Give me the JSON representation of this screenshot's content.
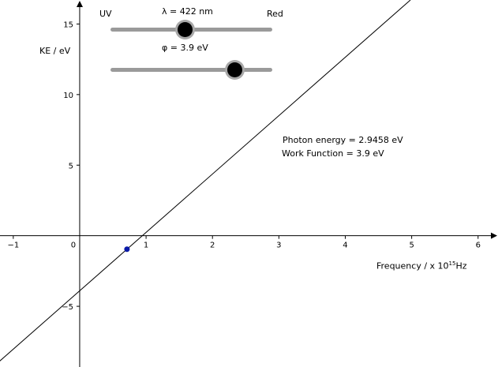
{
  "axes": {
    "ylabel": "KE / eV",
    "xlabel_prefix": "Frequency / x 10",
    "xlabel_exp": "15",
    "xlabel_unit": "Hz",
    "x_ticks": [
      "−1",
      "0",
      "1",
      "2",
      "3",
      "4",
      "5",
      "6"
    ],
    "y_ticks": [
      "15",
      "10",
      "5",
      "−5"
    ],
    "xlim": [
      -1.2,
      6.3
    ],
    "ylim": [
      -9.3,
      16.7
    ]
  },
  "sliders": {
    "wavelength": {
      "label": "λ = 422 nm",
      "left_label": "UV",
      "right_label": "Red",
      "fraction": 0.46
    },
    "work_function": {
      "label": "φ = 3.9 eV",
      "fraction": 0.77
    }
  },
  "readouts": {
    "photon_energy": "Photon energy = 2.9458 eV",
    "work_function": "Work Function = 3.9 eV"
  },
  "chart_data": {
    "type": "line",
    "title": "",
    "xlabel": "Frequency / x 10^15 Hz",
    "ylabel": "KE / eV",
    "xlim": [
      -1.2,
      6.3
    ],
    "ylim": [
      -9.3,
      16.7
    ],
    "grid": false,
    "series": [
      {
        "slope": 4.1357,
        "intercept": -3.9
      }
    ],
    "point": {
      "x": 0.7123,
      "y": -0.9542,
      "color": "#0a1aa8"
    }
  }
}
